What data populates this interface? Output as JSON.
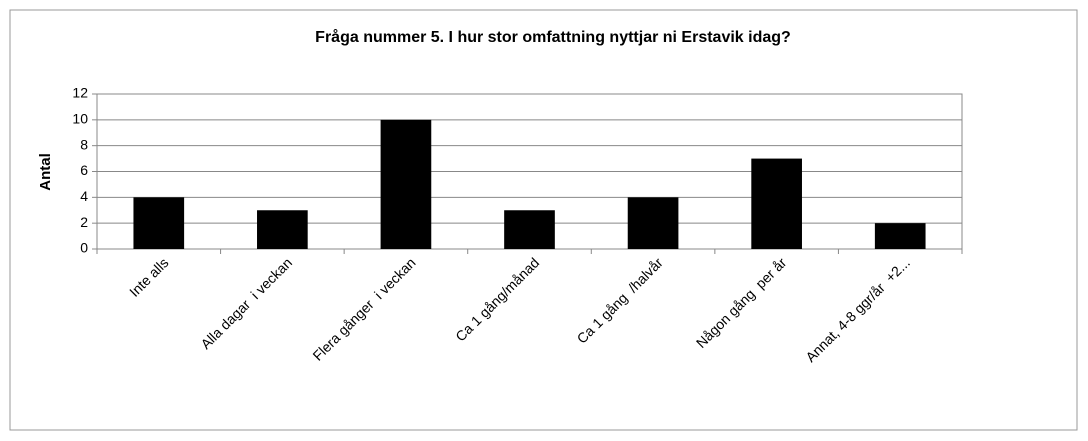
{
  "chart_data": {
    "type": "bar",
    "title": "Fråga nummer 5. I hur stor omfattning nyttjar ni Erstavik idag?",
    "y_label": "Antal",
    "categories": [
      "Inte alls",
      "Alla dagar  i veckan",
      "Flera gånger  i veckan",
      "Ca 1 gång/månad",
      "Ca 1 gång  /halvår",
      "Någon gång  per år",
      "Annat, 4-8 ggr/år  +2..."
    ],
    "values": [
      4,
      3,
      10,
      3,
      4,
      7,
      2
    ],
    "color": "#000000",
    "ylim": [
      0,
      12
    ],
    "yticks": [
      0,
      2,
      4,
      6,
      8,
      10,
      12
    ],
    "grid": true
  }
}
